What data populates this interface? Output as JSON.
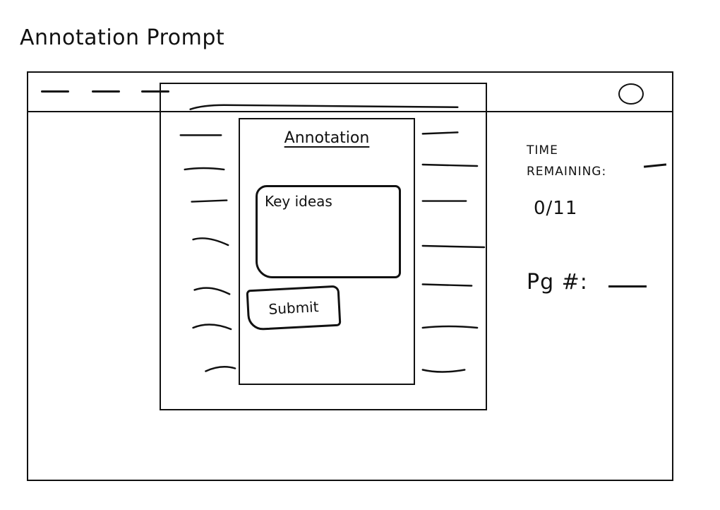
{
  "page": {
    "title": "Annotation Prompt"
  },
  "window": {
    "controls": [
      "dash",
      "dash",
      "dash",
      "circle"
    ]
  },
  "annotation": {
    "heading": "Annotation",
    "key_ideas_placeholder": "Key ideas",
    "submit_label": "Submit"
  },
  "status": {
    "time_label": "TIME REMAINING:",
    "progress": "0/11",
    "page_label": "Pg #:"
  }
}
